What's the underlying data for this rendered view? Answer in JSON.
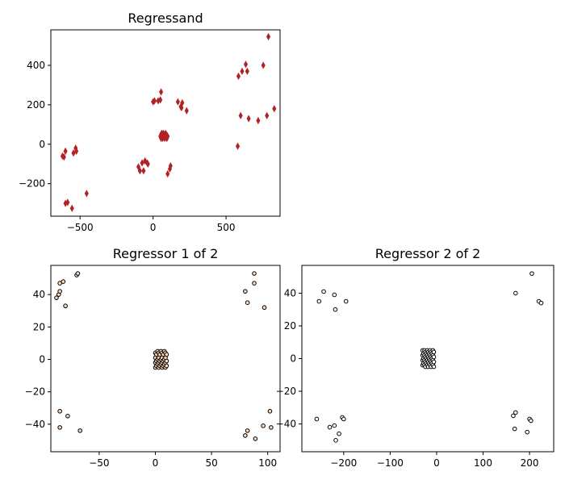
{
  "chart_data": [
    {
      "type": "scatter",
      "title": "Regressand",
      "xlabel": "",
      "ylabel": "",
      "xlim": [
        -700,
        870
      ],
      "ylim": [
        -365,
        580
      ],
      "xticks": [
        -500,
        0,
        500
      ],
      "yticks": [
        -200,
        0,
        200,
        400
      ],
      "marker": "thin_diamond",
      "color": "#b22222",
      "grid": false,
      "points": [
        [
          -610,
          -65
        ],
        [
          -620,
          -60
        ],
        [
          -600,
          -35
        ],
        [
          -545,
          -45
        ],
        [
          -530,
          -20
        ],
        [
          -525,
          -35
        ],
        [
          -600,
          -300
        ],
        [
          -585,
          -295
        ],
        [
          -555,
          -325
        ],
        [
          -455,
          -250
        ],
        [
          -100,
          -115
        ],
        [
          -90,
          -135
        ],
        [
          -75,
          -95
        ],
        [
          -65,
          -135
        ],
        [
          -55,
          -85
        ],
        [
          -40,
          -95
        ],
        [
          -35,
          -100
        ],
        [
          100,
          -150
        ],
        [
          115,
          -125
        ],
        [
          120,
          -110
        ],
        [
          0,
          215
        ],
        [
          10,
          220
        ],
        [
          35,
          220
        ],
        [
          50,
          225
        ],
        [
          55,
          265
        ],
        [
          170,
          215
        ],
        [
          190,
          190
        ],
        [
          195,
          185
        ],
        [
          200,
          210
        ],
        [
          230,
          170
        ],
        [
          50,
          40
        ],
        [
          55,
          30
        ],
        [
          55,
          50
        ],
        [
          60,
          35
        ],
        [
          60,
          55
        ],
        [
          65,
          40
        ],
        [
          65,
          30
        ],
        [
          70,
          45
        ],
        [
          70,
          55
        ],
        [
          75,
          35
        ],
        [
          75,
          50
        ],
        [
          80,
          30
        ],
        [
          80,
          45
        ],
        [
          85,
          40
        ],
        [
          85,
          55
        ],
        [
          90,
          35
        ],
        [
          90,
          50
        ],
        [
          95,
          45
        ],
        [
          95,
          30
        ],
        [
          100,
          40
        ],
        [
          580,
          -10
        ],
        [
          585,
          345
        ],
        [
          600,
          145
        ],
        [
          610,
          370
        ],
        [
          635,
          405
        ],
        [
          645,
          370
        ],
        [
          655,
          130
        ],
        [
          720,
          120
        ],
        [
          755,
          400
        ],
        [
          780,
          145
        ],
        [
          790,
          545
        ],
        [
          830,
          180
        ]
      ]
    },
    {
      "type": "scatter",
      "title": "Regressor 1 of 2",
      "xlabel": "",
      "ylabel": "",
      "xlim": [
        -93,
        111
      ],
      "ylim": [
        -57,
        58
      ],
      "xticks": [
        -50,
        0,
        50,
        100
      ],
      "yticks": [
        -40,
        -20,
        0,
        20,
        40
      ],
      "marker": "circle",
      "color": "#ffdab9",
      "grid": false,
      "points": [
        [
          -88,
          38
        ],
        [
          -86,
          40
        ],
        [
          -85,
          42
        ],
        [
          -85,
          47
        ],
        [
          -82,
          48
        ],
        [
          -80,
          33
        ],
        [
          -70,
          52
        ],
        [
          -69,
          53
        ],
        [
          -85,
          -32
        ],
        [
          -85,
          -42
        ],
        [
          -78,
          -35
        ],
        [
          -67,
          -44
        ],
        [
          80,
          42
        ],
        [
          82,
          35
        ],
        [
          88,
          53
        ],
        [
          88,
          47
        ],
        [
          97,
          32
        ],
        [
          82,
          -44
        ],
        [
          80,
          -47
        ],
        [
          89,
          -49
        ],
        [
          96,
          -41
        ],
        [
          102,
          -32
        ],
        [
          103,
          -42
        ],
        [
          0,
          4
        ],
        [
          0,
          1
        ],
        [
          0,
          -2
        ],
        [
          0,
          -5
        ],
        [
          1,
          3
        ],
        [
          1,
          -1
        ],
        [
          1,
          -4
        ],
        [
          2,
          5
        ],
        [
          2,
          0
        ],
        [
          2,
          -3
        ],
        [
          3,
          4
        ],
        [
          3,
          1
        ],
        [
          3,
          -2
        ],
        [
          3,
          -5
        ],
        [
          4,
          3
        ],
        [
          4,
          -1
        ],
        [
          4,
          -4
        ],
        [
          5,
          5
        ],
        [
          5,
          0
        ],
        [
          5,
          -3
        ],
        [
          6,
          4
        ],
        [
          6,
          1
        ],
        [
          6,
          -2
        ],
        [
          6,
          -5
        ],
        [
          7,
          3
        ],
        [
          7,
          -1
        ],
        [
          7,
          -4
        ],
        [
          8,
          5
        ],
        [
          8,
          0
        ],
        [
          8,
          -3
        ],
        [
          9,
          4
        ],
        [
          9,
          1
        ],
        [
          9,
          -2
        ],
        [
          9,
          -5
        ],
        [
          10,
          3
        ],
        [
          10,
          -1
        ],
        [
          10,
          -4
        ]
      ]
    },
    {
      "type": "scatter",
      "title": "Regressor 2 of 2",
      "xlabel": "",
      "ylabel": "",
      "xlim": [
        -290,
        252
      ],
      "ylim": [
        -57,
        57
      ],
      "xticks": [
        -200,
        -100,
        0,
        100,
        200
      ],
      "yticks": [
        -40,
        -20,
        0,
        20,
        40
      ],
      "marker": "circle",
      "color": "#ffffff",
      "grid": false,
      "points": [
        [
          -253,
          35
        ],
        [
          -243,
          41
        ],
        [
          -220,
          39
        ],
        [
          -218,
          30
        ],
        [
          -195,
          35
        ],
        [
          -258,
          -37
        ],
        [
          -230,
          -42
        ],
        [
          -220,
          -41
        ],
        [
          -217,
          -50
        ],
        [
          -210,
          -46
        ],
        [
          -203,
          -36
        ],
        [
          -200,
          -37
        ],
        [
          170,
          40
        ],
        [
          205,
          52
        ],
        [
          220,
          35
        ],
        [
          225,
          34
        ],
        [
          165,
          -35
        ],
        [
          170,
          -33
        ],
        [
          168,
          -43
        ],
        [
          195,
          -45
        ],
        [
          200,
          -37
        ],
        [
          203,
          -38
        ],
        [
          -30,
          5
        ],
        [
          -30,
          2
        ],
        [
          -30,
          -1
        ],
        [
          -30,
          -4
        ],
        [
          -28,
          3
        ],
        [
          -28,
          0
        ],
        [
          -28,
          -3
        ],
        [
          -26,
          5
        ],
        [
          -26,
          2
        ],
        [
          -26,
          -1
        ],
        [
          -26,
          -4
        ],
        [
          -24,
          4
        ],
        [
          -24,
          1
        ],
        [
          -24,
          -2
        ],
        [
          -24,
          -5
        ],
        [
          -22,
          3
        ],
        [
          -22,
          0
        ],
        [
          -22,
          -3
        ],
        [
          -20,
          5
        ],
        [
          -20,
          2
        ],
        [
          -20,
          -1
        ],
        [
          -20,
          -4
        ],
        [
          -18,
          4
        ],
        [
          -18,
          1
        ],
        [
          -18,
          -2
        ],
        [
          -18,
          -5
        ],
        [
          -16,
          3
        ],
        [
          -16,
          0
        ],
        [
          -16,
          -3
        ],
        [
          -14,
          5
        ],
        [
          -14,
          2
        ],
        [
          -14,
          -1
        ],
        [
          -14,
          -4
        ],
        [
          -12,
          4
        ],
        [
          -12,
          1
        ],
        [
          -12,
          -2
        ],
        [
          -12,
          -5
        ],
        [
          -10,
          3
        ],
        [
          -10,
          0
        ],
        [
          -10,
          -3
        ],
        [
          -8,
          5
        ],
        [
          -8,
          2
        ],
        [
          -8,
          -1
        ],
        [
          -8,
          -4
        ],
        [
          -6,
          4
        ],
        [
          -6,
          1
        ],
        [
          -6,
          -2
        ],
        [
          -6,
          -5
        ]
      ]
    }
  ]
}
